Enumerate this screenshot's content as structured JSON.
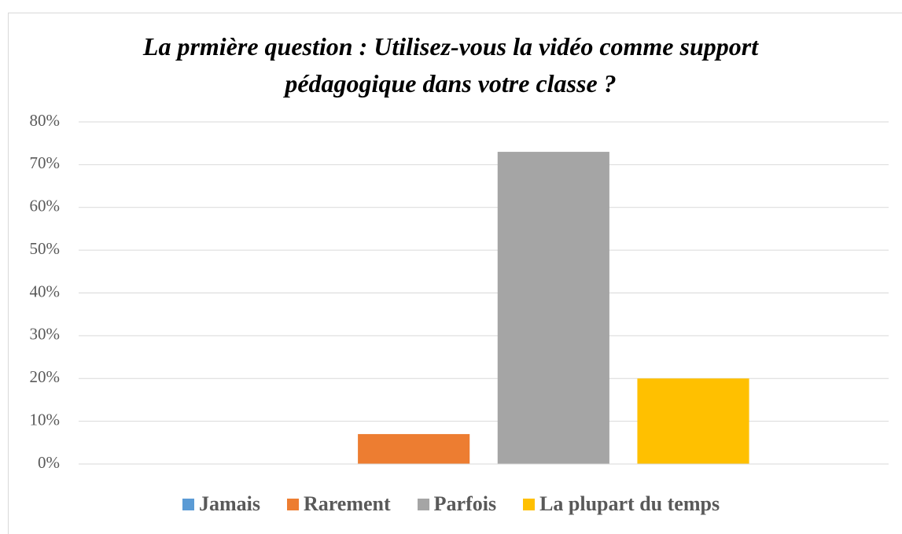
{
  "chart_data": {
    "type": "bar",
    "title": "La prmière question : Utilisez-vous la vidéo comme support pédagogique dans votre classe ?",
    "categories": [
      null
    ],
    "series": [
      {
        "name": "Jamais",
        "color": "#5b9bd5",
        "values": [
          0
        ]
      },
      {
        "name": "Rarement",
        "color": "#ed7d31",
        "values": [
          7
        ]
      },
      {
        "name": "Parfois",
        "color": "#a5a5a5",
        "values": [
          73
        ]
      },
      {
        "name": "La plupart du temps",
        "color": "#ffc000",
        "values": [
          20
        ]
      }
    ],
    "ylim": [
      0,
      80
    ],
    "yticks": [
      {
        "value": 0,
        "label": "0%"
      },
      {
        "value": 10,
        "label": "10%"
      },
      {
        "value": 20,
        "label": "20%"
      },
      {
        "value": 30,
        "label": "30%"
      },
      {
        "value": 40,
        "label": "40%"
      },
      {
        "value": 50,
        "label": "50%"
      },
      {
        "value": 60,
        "label": "60%"
      },
      {
        "value": 70,
        "label": "70%"
      },
      {
        "value": 80,
        "label": "80%"
      }
    ],
    "grid": true,
    "legend": "bottom"
  }
}
